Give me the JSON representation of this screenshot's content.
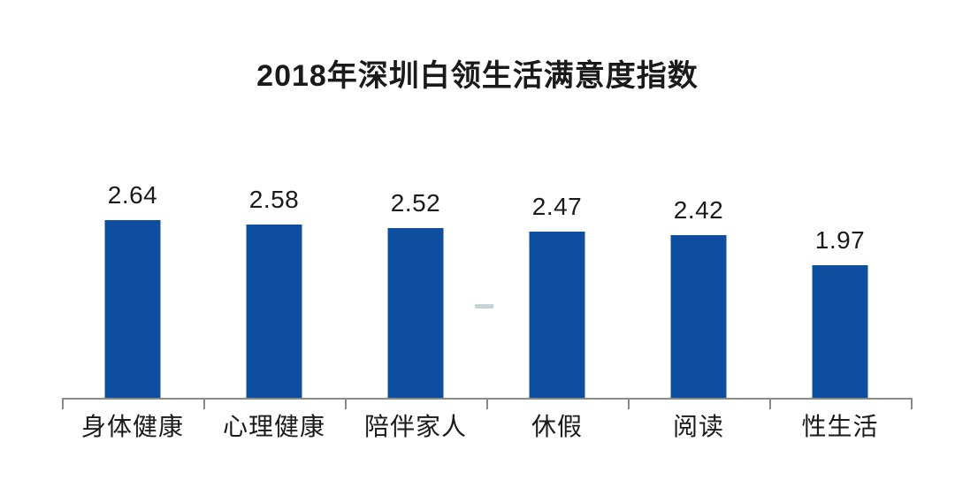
{
  "title": "2018年深圳白领生活满意度指数",
  "chart_data": {
    "type": "bar",
    "title": "2018年深圳白领生活满意度指数",
    "categories": [
      "身体健康",
      "心理健康",
      "陪伴家人",
      "休假",
      "阅读",
      "性生活"
    ],
    "values": [
      2.64,
      2.58,
      2.52,
      2.47,
      2.42,
      1.97
    ],
    "value_labels": [
      "2.64",
      "2.58",
      "2.52",
      "2.47",
      "2.42",
      "1.97"
    ],
    "xlabel": "",
    "ylabel": "",
    "ylim": [
      0,
      2.9
    ],
    "grid": false,
    "legend": "none",
    "bar_color": "#0f4e9e",
    "axis_color": "#8a8a8a",
    "text_color": "#1a1a1a"
  }
}
